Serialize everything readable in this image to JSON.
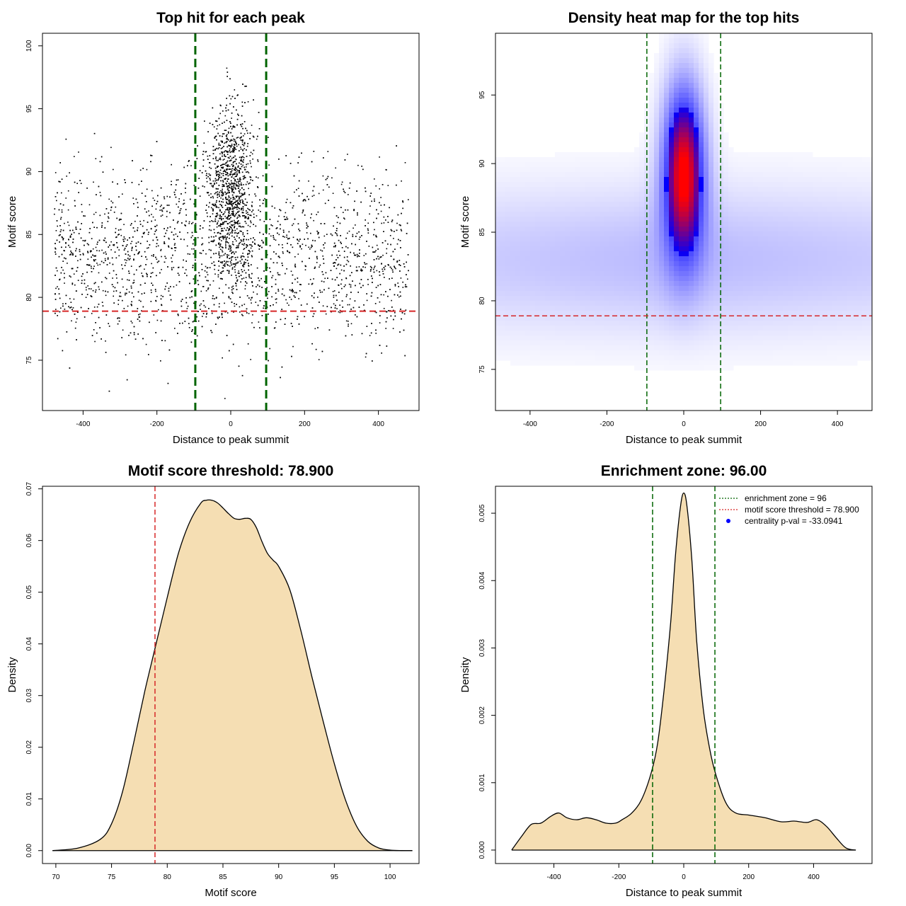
{
  "chart_data": [
    {
      "type": "scatter",
      "title": "Top hit for each peak",
      "xlabel": "Distance to peak summit",
      "ylabel": "Motif score",
      "xlim": [
        -510,
        510
      ],
      "ylim": [
        71,
        101
      ],
      "xticks": [
        "-400",
        "-200",
        "0",
        "200",
        "400"
      ],
      "yticks": [
        "75",
        "80",
        "85",
        "90",
        "95",
        "100"
      ],
      "zone_lines_x": [
        -96,
        96
      ],
      "threshold_y": 78.9,
      "point_count": 5000,
      "point_color": "#000000",
      "zone_color": "#006400",
      "threshold_color": "#d62728"
    },
    {
      "type": "heatmap",
      "title": "Density heat map for the top hits",
      "xlabel": "Distance to peak summit",
      "ylabel": "Motif score",
      "xlim": [
        -490,
        490
      ],
      "ylim": [
        72,
        99.5
      ],
      "xticks": [
        "-400",
        "-200",
        "0",
        "200",
        "400"
      ],
      "yticks": [
        "75",
        "80",
        "85",
        "90",
        "95"
      ],
      "zone_lines_x": [
        -96,
        96
      ],
      "threshold_y": 78.9,
      "palette": [
        "#ffffff",
        "#0000ff",
        "#ff0000"
      ],
      "zone_color": "#006400",
      "threshold_color": "#d62728"
    },
    {
      "type": "area",
      "title": "Motif score threshold: 78.900",
      "xlabel": "Motif score",
      "ylabel": "Density",
      "xlim": [
        68.8,
        102.6
      ],
      "ylim": [
        -0.0025,
        0.0705
      ],
      "xticks": [
        "70",
        "75",
        "80",
        "85",
        "90",
        "95",
        "100"
      ],
      "yticks": [
        "0.00",
        "0.01",
        "0.02",
        "0.03",
        "0.04",
        "0.05",
        "0.06",
        "0.07"
      ],
      "threshold_x": 78.9,
      "x": [
        69.7,
        72,
        74,
        75,
        76,
        77,
        78,
        79,
        80,
        81,
        82,
        83,
        83.5,
        84,
        84.5,
        85,
        85.5,
        86,
        86.5,
        87,
        87.5,
        88,
        88.5,
        89,
        89.5,
        90,
        91,
        92,
        93,
        94,
        95,
        96,
        97,
        98,
        99,
        100,
        101,
        102
      ],
      "y": [
        0.0,
        0.0005,
        0.0022,
        0.0052,
        0.0115,
        0.021,
        0.031,
        0.04,
        0.049,
        0.0575,
        0.0635,
        0.0672,
        0.0678,
        0.0678,
        0.0673,
        0.0663,
        0.0652,
        0.0643,
        0.0641,
        0.0643,
        0.0641,
        0.0625,
        0.0598,
        0.0575,
        0.0562,
        0.055,
        0.0505,
        0.0425,
        0.0335,
        0.025,
        0.0168,
        0.0098,
        0.0047,
        0.0018,
        0.0005,
        0.0001,
        0.0,
        0.0
      ],
      "fill_color": "#f5deb3",
      "threshold_color": "#d62728"
    },
    {
      "type": "area",
      "title": "Enrichment zone: 96.00",
      "xlabel": "Distance to peak summit",
      "ylabel": "Density",
      "xlim": [
        -580,
        580
      ],
      "ylim": [
        -0.0002,
        0.0054
      ],
      "xticks": [
        "-400",
        "-200",
        "0",
        "200",
        "400"
      ],
      "yticks": [
        "0.000",
        "0.001",
        "0.002",
        "0.003",
        "0.004",
        "0.005"
      ],
      "zone_lines_x": [
        -96,
        96
      ],
      "x": [
        -530,
        -500,
        -470,
        -440,
        -410,
        -385,
        -360,
        -330,
        -300,
        -270,
        -240,
        -210,
        -190,
        -160,
        -130,
        -100,
        -80,
        -60,
        -40,
        -25,
        -10,
        0,
        10,
        25,
        40,
        60,
        80,
        100,
        130,
        160,
        200,
        250,
        300,
        340,
        380,
        410,
        440,
        470,
        500,
        530
      ],
      "y": [
        0.0,
        0.0002,
        0.00038,
        0.0004,
        0.0005,
        0.00055,
        0.00048,
        0.00045,
        0.00048,
        0.00045,
        0.0004,
        0.0004,
        0.00045,
        0.00055,
        0.00075,
        0.00115,
        0.0016,
        0.0024,
        0.0034,
        0.0044,
        0.0051,
        0.0053,
        0.0051,
        0.0043,
        0.0031,
        0.0021,
        0.0015,
        0.0011,
        0.0007,
        0.00055,
        0.00052,
        0.00048,
        0.00042,
        0.00043,
        0.00041,
        0.00045,
        0.00035,
        0.00018,
        3e-05,
        0.0
      ],
      "fill_color": "#f5deb3",
      "zone_color": "#006400",
      "legend": {
        "position": "top-right",
        "entries": [
          {
            "label": "enrichment zone = 96",
            "color": "#006400",
            "style": "dotted-line"
          },
          {
            "label": "motif score threshold = 78.900",
            "color": "#d62728",
            "style": "dotted-line"
          },
          {
            "label": "centrality p-val = -33.0941",
            "color": "#0000ff",
            "style": "point"
          }
        ]
      }
    }
  ]
}
